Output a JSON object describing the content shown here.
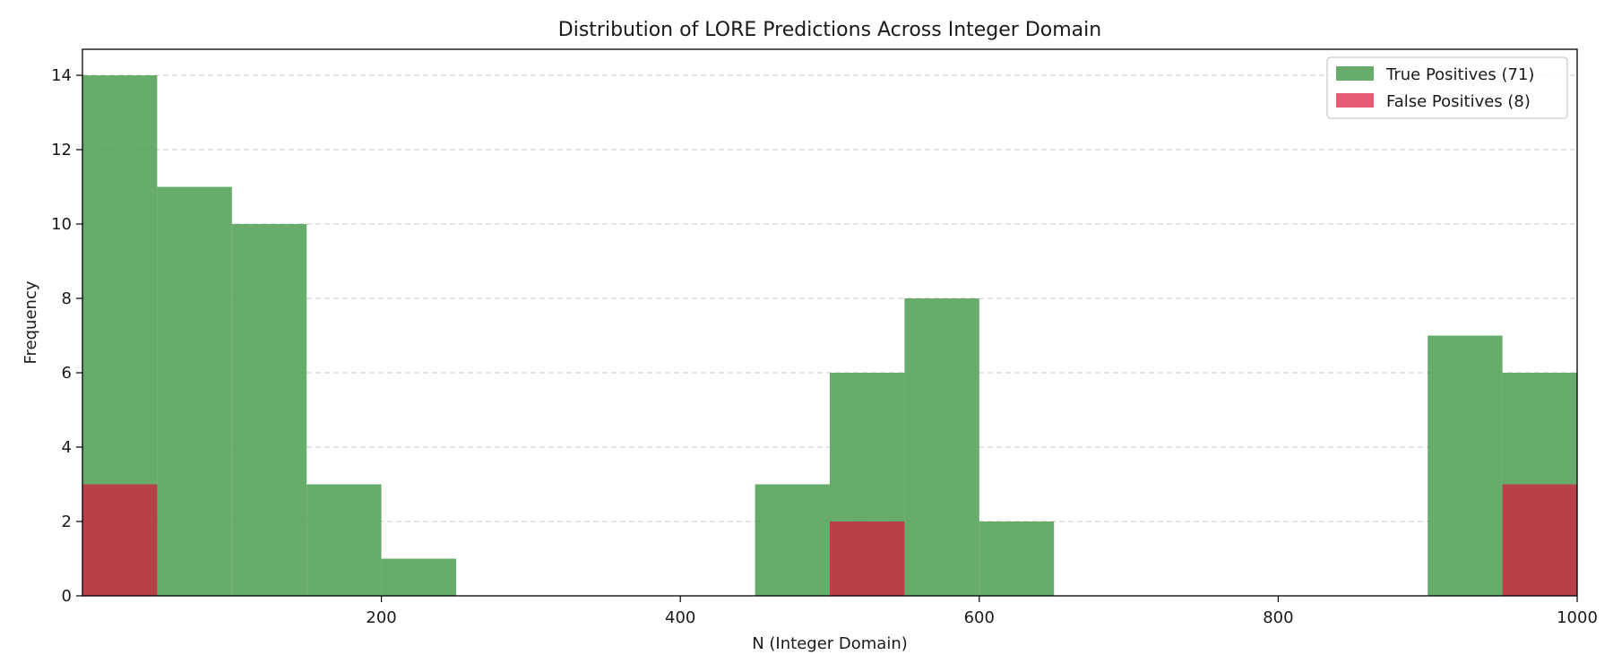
{
  "chart_data": {
    "type": "bar",
    "title": "Distribution of LORE Predictions Across Integer Domain",
    "xlabel": "N (Integer Domain)",
    "ylabel": "Frequency",
    "xlim": [
      0,
      1000
    ],
    "ylim": [
      0,
      14.7
    ],
    "xticks": [
      200,
      400,
      600,
      800,
      1000
    ],
    "yticks": [
      0,
      2,
      4,
      6,
      8,
      10,
      12,
      14
    ],
    "grid": "horizontal dashed",
    "legend_position": "top-right",
    "bin_edges": [
      0,
      50,
      100,
      150,
      200,
      250,
      300,
      350,
      400,
      450,
      500,
      550,
      600,
      650,
      700,
      750,
      800,
      850,
      900,
      950,
      1000
    ],
    "series": [
      {
        "name": "True Positives (71)",
        "color": "#4c9e50",
        "values": [
          14,
          11,
          10,
          3,
          1,
          0,
          0,
          0,
          0,
          3,
          6,
          8,
          2,
          0,
          0,
          0,
          0,
          0,
          7,
          6
        ]
      },
      {
        "name": "False Positives (8)",
        "color": "#dc143c",
        "values": [
          3,
          0,
          0,
          0,
          0,
          0,
          0,
          0,
          0,
          0,
          2,
          0,
          0,
          0,
          0,
          0,
          0,
          0,
          0,
          3
        ]
      }
    ]
  }
}
